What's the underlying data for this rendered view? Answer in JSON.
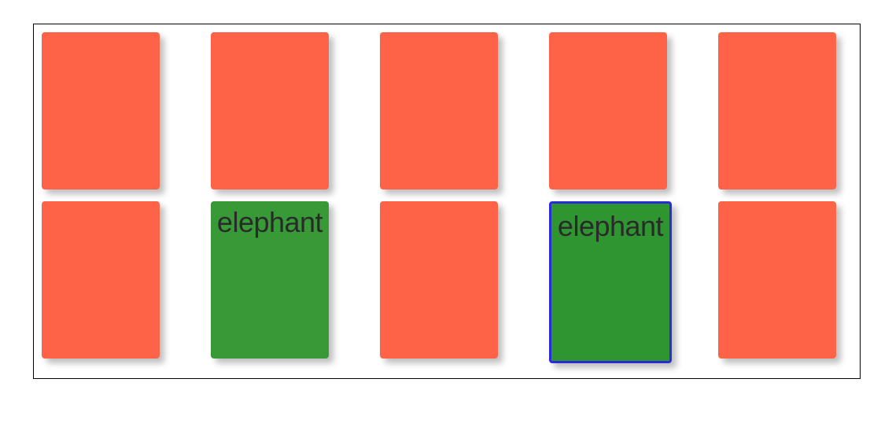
{
  "game": {
    "cards": [
      {
        "state": "face-down",
        "word": ""
      },
      {
        "state": "face-down",
        "word": ""
      },
      {
        "state": "face-down",
        "word": ""
      },
      {
        "state": "face-down",
        "word": ""
      },
      {
        "state": "face-down",
        "word": ""
      },
      {
        "state": "face-down",
        "word": ""
      },
      {
        "state": "face-up",
        "word": "elephant"
      },
      {
        "state": "face-down",
        "word": ""
      },
      {
        "state": "face-up",
        "word": "elephant",
        "selected": true
      },
      {
        "state": "face-down",
        "word": ""
      }
    ]
  },
  "colors": {
    "card_back": "#ff6347",
    "card_face": "#379a37",
    "selected_border": "#2b2bd9",
    "word_text": "#2a2a2a"
  }
}
